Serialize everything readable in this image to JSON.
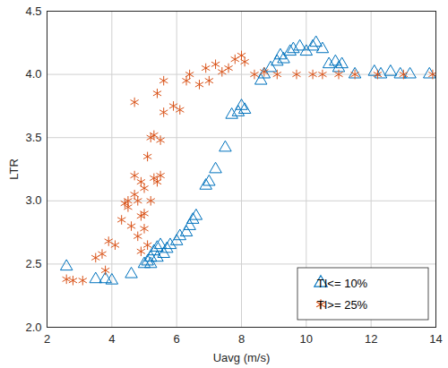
{
  "chart_data": {
    "type": "scatter",
    "xlabel": "Uavg (m/s)",
    "ylabel": "LTR",
    "xlim": [
      2,
      14
    ],
    "xticks": [
      2,
      4,
      6,
      8,
      10,
      12,
      14
    ],
    "ylim": [
      2,
      4.5
    ],
    "yticks": [
      2,
      2.5,
      3,
      3.5,
      4,
      4.5
    ],
    "grid": true,
    "legend": "lower right",
    "series": [
      {
        "name": "TI<= 10%",
        "color": "#0072BD",
        "marker": "triangle",
        "x": [
          2.6,
          3.5,
          3.8,
          4.0,
          4.6,
          5.0,
          5.1,
          5.2,
          5.2,
          5.3,
          5.4,
          5.4,
          5.5,
          5.6,
          5.7,
          5.8,
          6.0,
          6.1,
          6.3,
          6.4,
          6.5,
          6.6,
          6.9,
          7.0,
          7.2,
          7.5,
          7.7,
          7.9,
          8.0,
          8.1,
          8.6,
          8.7,
          8.9,
          9.1,
          9.2,
          9.3,
          9.5,
          9.6,
          9.8,
          10.0,
          10.2,
          10.3,
          10.5,
          10.7,
          10.9,
          11.0,
          11.1,
          11.5,
          12.1,
          12.3,
          12.6,
          12.9,
          13.2,
          13.8
        ],
        "values": [
          2.48,
          2.38,
          2.38,
          2.37,
          2.42,
          2.5,
          2.52,
          2.55,
          2.5,
          2.6,
          2.55,
          2.63,
          2.65,
          2.58,
          2.62,
          2.65,
          2.68,
          2.72,
          2.75,
          2.8,
          2.85,
          2.88,
          3.12,
          3.15,
          3.25,
          3.42,
          3.68,
          3.7,
          3.75,
          3.72,
          3.95,
          4.0,
          4.05,
          4.1,
          4.15,
          4.12,
          4.18,
          4.2,
          4.22,
          4.18,
          4.22,
          4.25,
          4.2,
          4.08,
          4.1,
          4.05,
          4.08,
          4.0,
          4.02,
          4.0,
          4.02,
          4.0,
          4.0,
          4.0
        ]
      },
      {
        "name": "TI>= 25%",
        "color": "#D95319",
        "marker": "asterisk",
        "x": [
          2.6,
          2.8,
          3.1,
          3.5,
          3.7,
          3.8,
          3.9,
          4.1,
          4.3,
          4.4,
          4.5,
          4.6,
          4.7,
          4.7,
          4.8,
          4.8,
          4.9,
          4.9,
          5.0,
          5.0,
          5.1,
          5.1,
          5.2,
          5.2,
          5.3,
          5.3,
          5.4,
          5.4,
          5.5,
          5.5,
          5.6,
          5.6,
          4.7,
          5.9,
          6.1,
          6.3,
          6.4,
          6.7,
          6.9,
          7.0,
          7.2,
          7.4,
          7.6,
          7.8,
          8.0,
          8.1,
          8.4,
          8.7,
          9.1,
          9.7,
          10.2,
          10.5,
          11.0,
          11.5,
          12.2,
          13.0,
          13.9,
          4.9,
          5.0,
          4.5
        ],
        "values": [
          2.38,
          2.37,
          2.37,
          2.55,
          2.58,
          2.45,
          2.68,
          2.65,
          2.85,
          2.98,
          2.95,
          2.8,
          3.2,
          3.05,
          2.72,
          3.0,
          2.88,
          3.15,
          3.1,
          2.78,
          2.65,
          3.35,
          3.5,
          3.0,
          3.18,
          3.52,
          3.15,
          3.85,
          3.2,
          3.48,
          3.95,
          3.7,
          3.78,
          3.75,
          3.72,
          3.95,
          4.0,
          3.92,
          4.05,
          3.95,
          4.08,
          4.02,
          4.05,
          4.12,
          4.15,
          4.1,
          4.0,
          4.02,
          4.0,
          4.0,
          4.0,
          4.0,
          4.0,
          4.0,
          4.0,
          4.0,
          4.0,
          2.6,
          2.9,
          3.0
        ]
      }
    ]
  }
}
